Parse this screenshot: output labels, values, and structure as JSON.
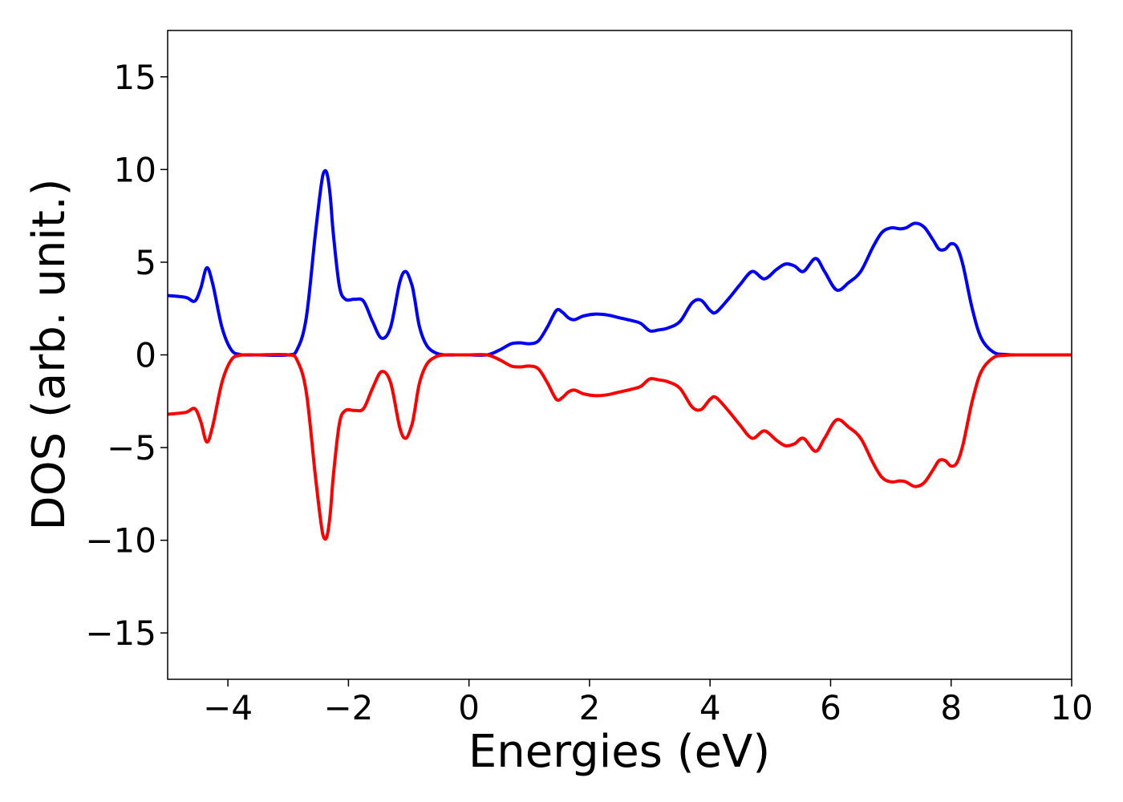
{
  "chart_data": {
    "type": "line",
    "title": "",
    "xlabel": "Energies (eV)",
    "ylabel": "DOS (arb. unit.)",
    "xlim": [
      -5,
      10
    ],
    "ylim": [
      -17.5,
      17.5
    ],
    "xticks": [
      -4,
      -2,
      0,
      2,
      4,
      6,
      8,
      10
    ],
    "xtick_labels": [
      "−4",
      "−2",
      "0",
      "2",
      "4",
      "6",
      "8",
      "10"
    ],
    "yticks": [
      15,
      10,
      5,
      0,
      -5,
      -10,
      -15
    ],
    "ytick_labels": [
      "15",
      "10",
      "5",
      "0",
      "−5",
      "−10",
      "−15"
    ],
    "grid": false,
    "legend": "none",
    "series": [
      {
        "color": "#0000ff",
        "x": [
          -5,
          -4.7,
          -4.55,
          -4.45,
          -4.35,
          -4.25,
          -4.1,
          -3.95,
          -3.8,
          -3.5,
          -3.0,
          -2.85,
          -2.7,
          -2.55,
          -2.45,
          -2.4,
          -2.35,
          -2.3,
          -2.25,
          -2.15,
          -2.05,
          -1.9,
          -1.75,
          -1.6,
          -1.45,
          -1.3,
          -1.15,
          -1.05,
          -0.95,
          -0.9,
          -0.82,
          -0.7,
          -0.55,
          -0.4,
          -0.2,
          0,
          0.3,
          0.5,
          0.7,
          0.85,
          1.0,
          1.15,
          1.3,
          1.45,
          1.55,
          1.65,
          1.75,
          1.9,
          2.1,
          2.3,
          2.5,
          2.7,
          2.85,
          3.0,
          3.15,
          3.3,
          3.5,
          3.7,
          3.85,
          4.0,
          4.1,
          4.3,
          4.5,
          4.7,
          4.9,
          5.1,
          5.25,
          5.4,
          5.55,
          5.75,
          5.9,
          6.1,
          6.3,
          6.5,
          6.7,
          6.85,
          7.0,
          7.15,
          7.25,
          7.4,
          7.55,
          7.7,
          7.8,
          7.9,
          8.0,
          8.1,
          8.2,
          8.35,
          8.5,
          8.7,
          8.9,
          9.2,
          10
        ],
        "values": [
          3.2,
          3.1,
          2.9,
          3.6,
          4.7,
          3.8,
          1.5,
          0.3,
          0.02,
          0,
          0,
          0.3,
          2.0,
          6.5,
          9.2,
          9.9,
          9.7,
          8.5,
          6.5,
          3.7,
          3.0,
          3.0,
          2.9,
          1.8,
          0.9,
          1.5,
          3.9,
          4.5,
          3.8,
          3.0,
          1.5,
          0.5,
          0.1,
          0,
          0,
          0,
          0,
          0.25,
          0.6,
          0.65,
          0.6,
          0.75,
          1.5,
          2.4,
          2.3,
          2.0,
          1.9,
          2.1,
          2.2,
          2.15,
          2.0,
          1.85,
          1.7,
          1.3,
          1.35,
          1.45,
          1.8,
          2.8,
          2.95,
          2.4,
          2.3,
          3.0,
          3.8,
          4.5,
          4.1,
          4.6,
          4.9,
          4.8,
          4.5,
          5.2,
          4.5,
          3.5,
          3.9,
          4.5,
          5.8,
          6.6,
          6.85,
          6.8,
          6.85,
          7.1,
          6.9,
          6.2,
          5.7,
          5.7,
          6.0,
          5.8,
          4.8,
          2.5,
          0.9,
          0.15,
          0.02,
          0,
          0
        ]
      },
      {
        "color": "#ff0000",
        "x": [
          -5,
          -4.7,
          -4.55,
          -4.45,
          -4.35,
          -4.25,
          -4.1,
          -3.95,
          -3.8,
          -3.5,
          -3.0,
          -2.85,
          -2.7,
          -2.55,
          -2.45,
          -2.4,
          -2.35,
          -2.3,
          -2.25,
          -2.15,
          -2.05,
          -1.9,
          -1.75,
          -1.6,
          -1.45,
          -1.3,
          -1.15,
          -1.05,
          -0.95,
          -0.9,
          -0.82,
          -0.7,
          -0.55,
          -0.4,
          -0.2,
          0,
          0.3,
          0.5,
          0.7,
          0.85,
          1.0,
          1.15,
          1.3,
          1.45,
          1.55,
          1.65,
          1.75,
          1.9,
          2.1,
          2.3,
          2.5,
          2.7,
          2.85,
          3.0,
          3.15,
          3.3,
          3.5,
          3.7,
          3.85,
          4.0,
          4.1,
          4.3,
          4.5,
          4.7,
          4.9,
          5.1,
          5.25,
          5.4,
          5.55,
          5.75,
          5.9,
          6.1,
          6.3,
          6.5,
          6.7,
          6.85,
          7.0,
          7.15,
          7.25,
          7.4,
          7.55,
          7.7,
          7.8,
          7.9,
          8.0,
          8.1,
          8.2,
          8.35,
          8.5,
          8.7,
          8.9,
          9.2,
          10
        ],
        "values": [
          -3.2,
          -3.1,
          -2.9,
          -3.6,
          -4.7,
          -3.8,
          -1.5,
          -0.3,
          -0.02,
          0,
          0,
          -0.3,
          -2.0,
          -6.5,
          -9.2,
          -9.9,
          -9.7,
          -8.5,
          -6.5,
          -3.7,
          -3.0,
          -3.0,
          -2.9,
          -1.8,
          -0.9,
          -1.5,
          -3.9,
          -4.5,
          -3.8,
          -3.0,
          -1.5,
          -0.5,
          -0.1,
          0,
          0,
          0,
          0,
          -0.25,
          -0.6,
          -0.65,
          -0.6,
          -0.75,
          -1.5,
          -2.4,
          -2.3,
          -2.0,
          -1.9,
          -2.1,
          -2.2,
          -2.15,
          -2.0,
          -1.85,
          -1.7,
          -1.3,
          -1.35,
          -1.45,
          -1.8,
          -2.8,
          -2.95,
          -2.4,
          -2.3,
          -3.0,
          -3.8,
          -4.5,
          -4.1,
          -4.6,
          -4.9,
          -4.8,
          -4.5,
          -5.2,
          -4.5,
          -3.5,
          -3.9,
          -4.5,
          -5.8,
          -6.6,
          -6.85,
          -6.8,
          -6.85,
          -7.1,
          -6.9,
          -6.2,
          -5.7,
          -5.7,
          -6.0,
          -5.8,
          -4.8,
          -2.5,
          -0.9,
          -0.15,
          -0.02,
          0,
          0
        ]
      }
    ]
  }
}
